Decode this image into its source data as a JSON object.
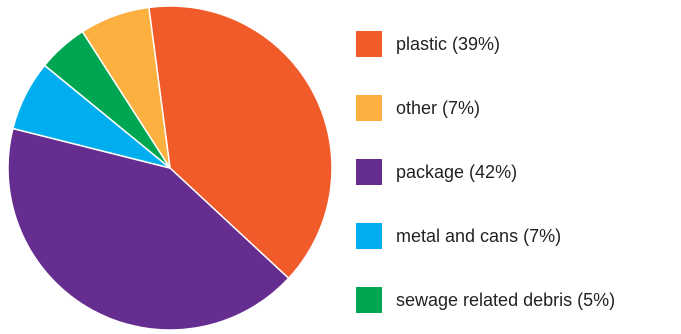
{
  "chart_data": {
    "type": "pie",
    "title": "",
    "legend_position": "right",
    "slices": [
      {
        "label": "plastic (39%)",
        "value": 39,
        "color": "#f15a29"
      },
      {
        "label": "package (42%)",
        "value": 42,
        "color": "#662d91"
      },
      {
        "label": "metal and cans (7%)",
        "value": 7,
        "color": "#00aeef"
      },
      {
        "label": "sewage related debris (5%)",
        "value": 5,
        "color": "#00a651"
      },
      {
        "label": "other (7%)",
        "value": 7,
        "color": "#fbb040"
      }
    ],
    "legend_order": [
      0,
      4,
      1,
      2,
      3
    ]
  }
}
